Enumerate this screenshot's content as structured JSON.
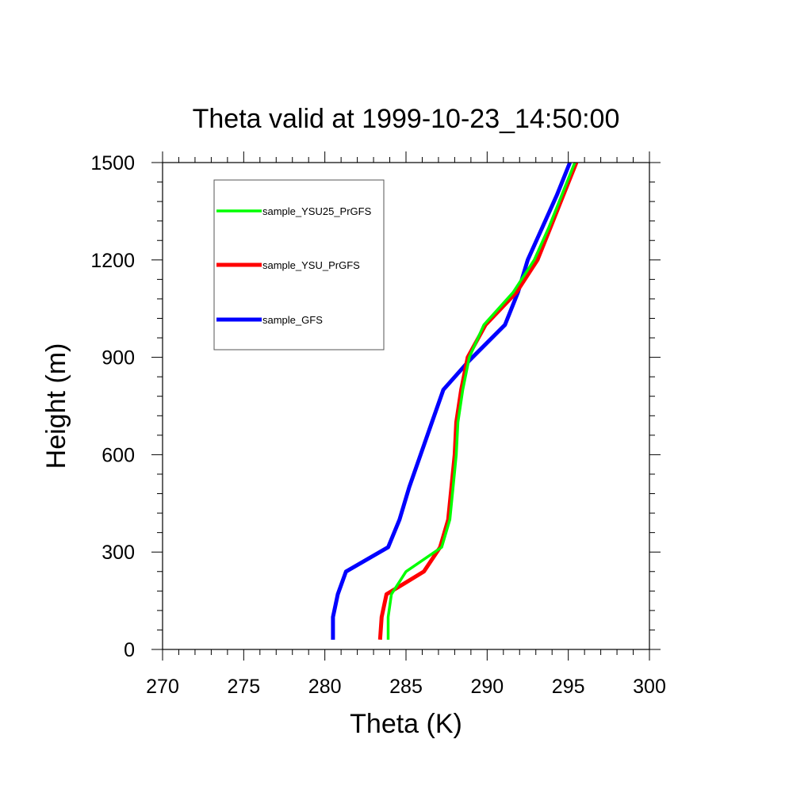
{
  "chart_data": {
    "type": "line",
    "title": "Theta valid at 1999-10-23_14:50:00",
    "xlabel": "Theta (K)",
    "ylabel": "Height (m)",
    "xlim": [
      270,
      300
    ],
    "ylim": [
      0,
      1500
    ],
    "x_ticks": [
      "270",
      "275",
      "280",
      "285",
      "290",
      "295",
      "300"
    ],
    "y_ticks": [
      "0",
      "300",
      "600",
      "900",
      "1200",
      "1500"
    ],
    "legend_position": "top-left",
    "series": [
      {
        "name": "sample_YSU25_PrGFS",
        "color": "#00ff00",
        "points": [
          [
            283.9,
            30
          ],
          [
            283.9,
            100
          ],
          [
            284.1,
            170
          ],
          [
            285.0,
            240
          ],
          [
            287.2,
            315
          ],
          [
            287.7,
            400
          ],
          [
            287.9,
            500
          ],
          [
            288.1,
            600
          ],
          [
            288.2,
            700
          ],
          [
            288.5,
            800
          ],
          [
            288.9,
            900
          ],
          [
            289.8,
            1000
          ],
          [
            291.6,
            1100
          ],
          [
            292.9,
            1200
          ],
          [
            293.8,
            1300
          ],
          [
            294.6,
            1400
          ],
          [
            295.4,
            1500
          ]
        ]
      },
      {
        "name": "sample_YSU_PrGFS",
        "color": "#ff0000",
        "points": [
          [
            283.4,
            30
          ],
          [
            283.5,
            100
          ],
          [
            283.8,
            170
          ],
          [
            286.1,
            240
          ],
          [
            287.1,
            315
          ],
          [
            287.6,
            400
          ],
          [
            287.8,
            500
          ],
          [
            288.0,
            600
          ],
          [
            288.1,
            700
          ],
          [
            288.4,
            800
          ],
          [
            288.8,
            900
          ],
          [
            289.9,
            1000
          ],
          [
            291.8,
            1100
          ],
          [
            293.1,
            1200
          ],
          [
            293.9,
            1300
          ],
          [
            294.7,
            1400
          ],
          [
            295.5,
            1500
          ]
        ]
      },
      {
        "name": "sample_GFS",
        "color": "#0000ff",
        "points": [
          [
            280.5,
            30
          ],
          [
            280.5,
            100
          ],
          [
            280.8,
            170
          ],
          [
            281.3,
            240
          ],
          [
            283.9,
            315
          ],
          [
            284.6,
            400
          ],
          [
            285.2,
            500
          ],
          [
            285.9,
            600
          ],
          [
            286.6,
            700
          ],
          [
            287.3,
            800
          ],
          [
            288.9,
            890
          ],
          [
            291.1,
            1000
          ],
          [
            291.9,
            1100
          ],
          [
            292.5,
            1200
          ],
          [
            293.4,
            1300
          ],
          [
            294.3,
            1400
          ],
          [
            295.1,
            1500
          ]
        ]
      }
    ]
  }
}
